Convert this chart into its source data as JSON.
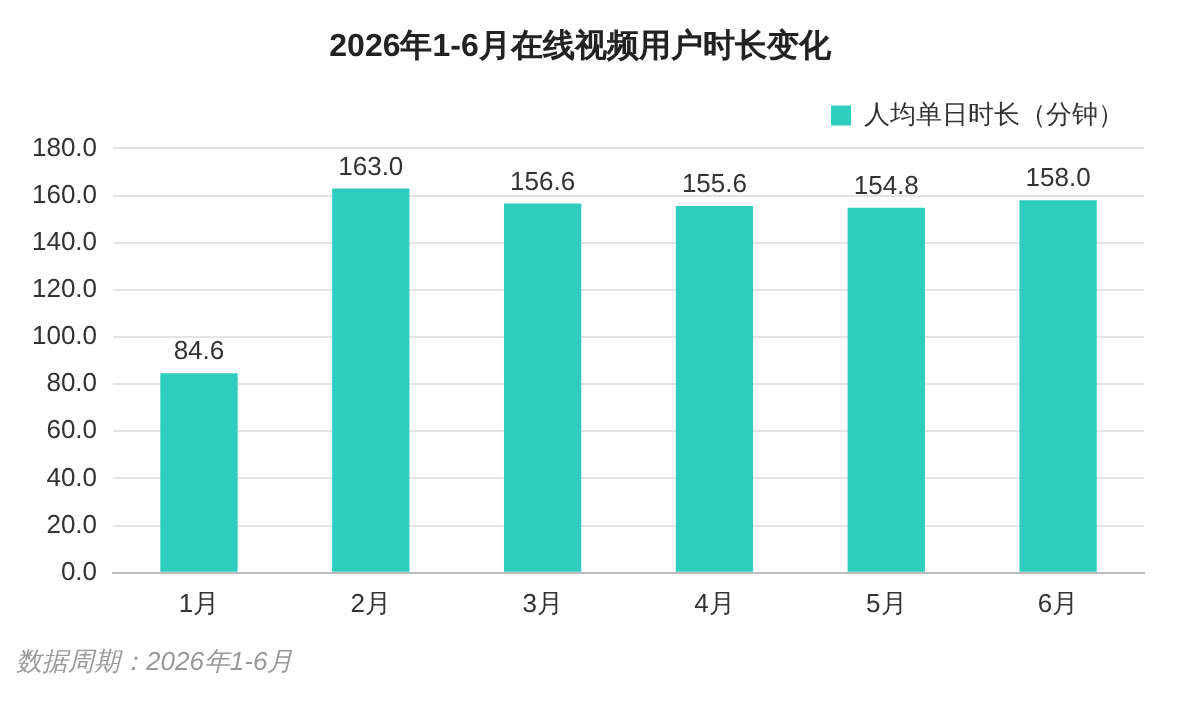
{
  "chart_data": {
    "type": "bar",
    "title": "2026年1-6月在线视频用户时长变化",
    "categories": [
      "1月",
      "2月",
      "3月",
      "4月",
      "5月",
      "6月"
    ],
    "series": [
      {
        "name": "人均单日时长（分钟）",
        "color": "#2ecdc0",
        "values": [
          84.6,
          163.0,
          156.6,
          155.6,
          154.8,
          158.0
        ],
        "value_labels": [
          "84.6",
          "163.0",
          "156.6",
          "155.6",
          "154.8",
          "158.0"
        ]
      }
    ],
    "ylim": [
      0,
      180
    ],
    "yticks": [
      {
        "value": 0,
        "label": "0.0"
      },
      {
        "value": 20,
        "label": "20.0"
      },
      {
        "value": 40,
        "label": "40.0"
      },
      {
        "value": 60,
        "label": "60.0"
      },
      {
        "value": 80,
        "label": "80.0"
      },
      {
        "value": 100,
        "label": "100.0"
      },
      {
        "value": 120,
        "label": "120.0"
      },
      {
        "value": 140,
        "label": "140.0"
      },
      {
        "value": 160,
        "label": "160.0"
      },
      {
        "value": 180,
        "label": "180.0"
      }
    ],
    "grid": "y",
    "legend": "top",
    "annotations": [
      "数据周期：2026年1-6月"
    ]
  }
}
